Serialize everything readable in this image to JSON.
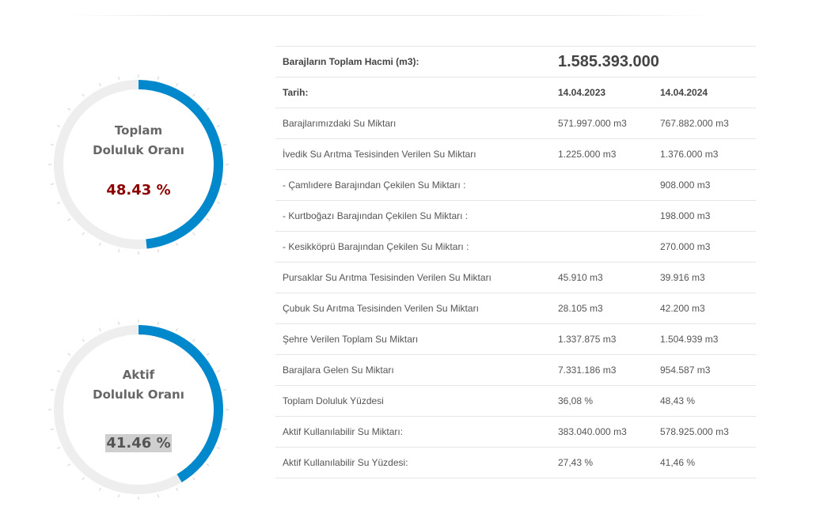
{
  "colors": {
    "accent": "#0088cc",
    "track": "#eeeeee",
    "alert_red": "#cc0000",
    "total_value": "#8b0000",
    "highlight_bg": "#cfcfcf"
  },
  "gauges": [
    {
      "title_line1": "Toplam",
      "title_line2": "Doluluk Oranı",
      "value_text": "48.43 %",
      "fraction": 0.4843
    },
    {
      "title_line1": "Aktif",
      "title_line2": "Doluluk Oranı",
      "value_text": "41.46 %",
      "fraction": 0.4146
    }
  ],
  "table": {
    "capacity_label": "Barajların Toplam Hacmi (m3):",
    "capacity_value": "1.585.393.000",
    "date_label": "Tarih:",
    "dates": [
      "14.04.2023",
      "14.04.2024"
    ],
    "rows": [
      {
        "label": "Barajlarımızdaki Su Miktarı",
        "v2023": "571.997.000 m3",
        "v2024": "767.882.000 m3"
      },
      {
        "label": "İvedik Su Arıtma Tesisinden Verilen Su Miktarı",
        "v2023": "1.225.000 m3",
        "v2024": "1.376.000 m3"
      },
      {
        "label": "- Çamlıdere Barajından Çekilen Su Miktarı :",
        "v2023": "",
        "v2024": "908.000 m3"
      },
      {
        "label": "- Kurtboğazı Barajından Çekilen Su Miktarı :",
        "v2023": "",
        "v2024": "198.000 m3"
      },
      {
        "label": "- Kesikköprü Barajından Çekilen Su Miktarı :",
        "v2023": "",
        "v2024": "270.000 m3"
      },
      {
        "label": "Pursaklar Su Arıtma Tesisinden Verilen Su Miktarı",
        "v2023": "45.910 m3",
        "v2024": "39.916 m3"
      },
      {
        "label": "Çubuk Su Arıtma Tesisinden Verilen Su Miktarı",
        "v2023": "28.105 m3",
        "v2024": "42.200 m3"
      },
      {
        "label": "Şehre Verilen Toplam Su Miktarı",
        "v2023": "1.337.875 m3",
        "v2024": "1.504.939 m3"
      },
      {
        "label": "Barajlara Gelen Su Miktarı",
        "v2023": "7.331.186 m3",
        "v2024": "954.587 m3"
      },
      {
        "label": "Toplam Doluluk Yüzdesi",
        "v2023": "36,08 %",
        "v2024": "48,43 %"
      },
      {
        "label": "Aktif Kullanılabilir Su Miktarı:",
        "v2023": "383.040.000 m3",
        "v2024": "578.925.000 m3"
      },
      {
        "label": "Aktif Kullanılabilir Su Yüzdesi:",
        "v2023": "27,43 %",
        "v2024": "41,46 %"
      }
    ]
  }
}
